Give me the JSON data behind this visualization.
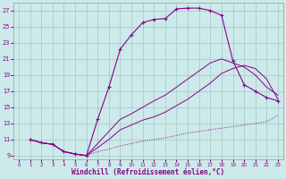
{
  "xlabel": "Windchill (Refroidissement éolien,°C)",
  "xlim": [
    -0.5,
    23.5
  ],
  "ylim": [
    8.5,
    28
  ],
  "xticks": [
    0,
    1,
    2,
    3,
    4,
    5,
    6,
    7,
    8,
    9,
    10,
    11,
    12,
    13,
    14,
    15,
    16,
    17,
    18,
    19,
    20,
    21,
    22,
    23
  ],
  "yticks": [
    9,
    11,
    13,
    15,
    17,
    19,
    21,
    23,
    25,
    27
  ],
  "background_color": "#cceaea",
  "grid_color": "#aacccc",
  "line_color": "#880088",
  "line1_x": [
    1,
    2,
    3,
    4,
    5,
    6,
    7,
    8,
    9,
    10,
    11,
    12,
    13,
    14,
    15,
    16,
    17,
    18,
    19,
    20,
    21,
    22,
    23
  ],
  "line1_y": [
    11.0,
    10.6,
    10.4,
    9.5,
    9.2,
    9.0,
    13.5,
    17.5,
    22.2,
    24.0,
    25.5,
    25.9,
    26.0,
    27.2,
    27.3,
    27.3,
    27.0,
    26.4,
    20.8,
    17.8,
    17.0,
    16.2,
    15.8
  ],
  "line2_x": [
    1,
    2,
    3,
    4,
    5,
    6,
    7,
    8,
    9,
    10,
    11,
    12,
    13,
    14,
    15,
    16,
    17,
    18,
    19,
    20,
    21,
    22,
    23
  ],
  "line2_y": [
    11.0,
    10.6,
    10.4,
    9.5,
    9.2,
    9.0,
    9.5,
    9.8,
    10.2,
    10.5,
    10.8,
    11.0,
    11.2,
    11.5,
    11.8,
    12.0,
    12.2,
    12.4,
    12.6,
    12.8,
    13.0,
    13.2,
    14.0
  ],
  "line3_x": [
    1,
    2,
    3,
    4,
    5,
    6,
    7,
    8,
    9,
    10,
    11,
    12,
    13,
    14,
    15,
    16,
    17,
    18,
    19,
    20,
    21,
    22,
    23
  ],
  "line3_y": [
    11.0,
    10.6,
    10.4,
    9.5,
    9.2,
    9.0,
    10.0,
    11.0,
    12.2,
    12.8,
    13.4,
    13.8,
    14.4,
    15.2,
    16.0,
    17.0,
    18.0,
    19.2,
    19.8,
    20.2,
    19.8,
    18.5,
    16.0
  ],
  "line4_x": [
    1,
    2,
    3,
    4,
    5,
    6,
    7,
    8,
    9,
    10,
    11,
    12,
    13,
    14,
    15,
    16,
    17,
    18,
    19,
    20,
    21,
    22,
    23
  ],
  "line4_y": [
    11.0,
    10.6,
    10.4,
    9.5,
    9.2,
    9.0,
    10.5,
    12.0,
    13.5,
    14.2,
    15.0,
    15.8,
    16.5,
    17.5,
    18.5,
    19.5,
    20.5,
    21.0,
    20.5,
    20.0,
    19.0,
    17.5,
    16.5
  ]
}
